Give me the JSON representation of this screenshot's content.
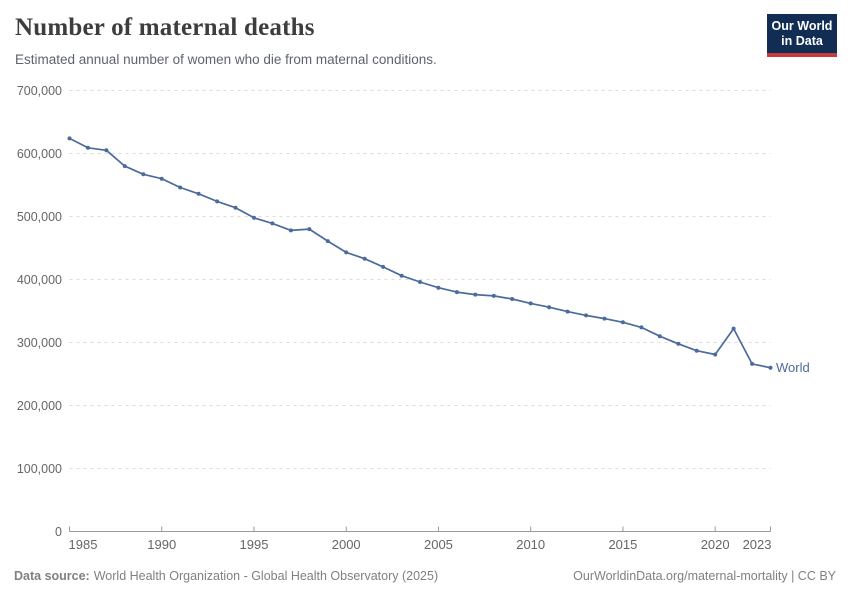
{
  "header": {
    "title": "Number of maternal deaths",
    "subtitle": "Estimated annual number of women who die from maternal conditions."
  },
  "logo": {
    "line1": "Our World",
    "line2": "in Data",
    "bg_color": "#122D54",
    "stripe_color": "#C73A3E"
  },
  "chart_data": {
    "type": "line",
    "title": "Number of maternal deaths",
    "xlabel": "",
    "ylabel": "",
    "xlim": [
      1985,
      2023
    ],
    "ylim": [
      0,
      700000
    ],
    "grid": "horizontal-dashed",
    "legend_position": "end-of-line-label",
    "x_ticks": [
      1985,
      1990,
      1995,
      2000,
      2005,
      2010,
      2015,
      2020,
      2023
    ],
    "y_ticks": [
      0,
      100000,
      200000,
      300000,
      400000,
      500000,
      600000,
      700000
    ],
    "series": [
      {
        "name": "World",
        "color": "#4C6A9C",
        "x": [
          1985,
          1986,
          1987,
          1988,
          1989,
          1990,
          1991,
          1992,
          1993,
          1994,
          1995,
          1996,
          1997,
          1998,
          1999,
          2000,
          2001,
          2002,
          2003,
          2004,
          2005,
          2006,
          2007,
          2008,
          2009,
          2010,
          2011,
          2012,
          2013,
          2014,
          2015,
          2016,
          2017,
          2018,
          2019,
          2020,
          2021,
          2022,
          2023
        ],
        "values": [
          624000,
          609000,
          605000,
          580000,
          567000,
          560000,
          546000,
          536000,
          524000,
          514000,
          498000,
          489000,
          478000,
          480000,
          461000,
          443000,
          433000,
          420000,
          406000,
          396000,
          387000,
          380000,
          376000,
          374000,
          369000,
          362000,
          356000,
          349000,
          343000,
          338000,
          332000,
          324000,
          310000,
          298000,
          287000,
          281000,
          322000,
          266000,
          260000
        ]
      }
    ],
    "colors": {
      "gridline": "#dcdcdc",
      "axis": "#9b9b9b",
      "tick_label": "#666666"
    }
  },
  "footer": {
    "source_label": "Data source:",
    "source_text": "World Health Organization - Global Health Observatory (2025)",
    "right": "OurWorldinData.org/maternal-mortality | CC BY"
  }
}
